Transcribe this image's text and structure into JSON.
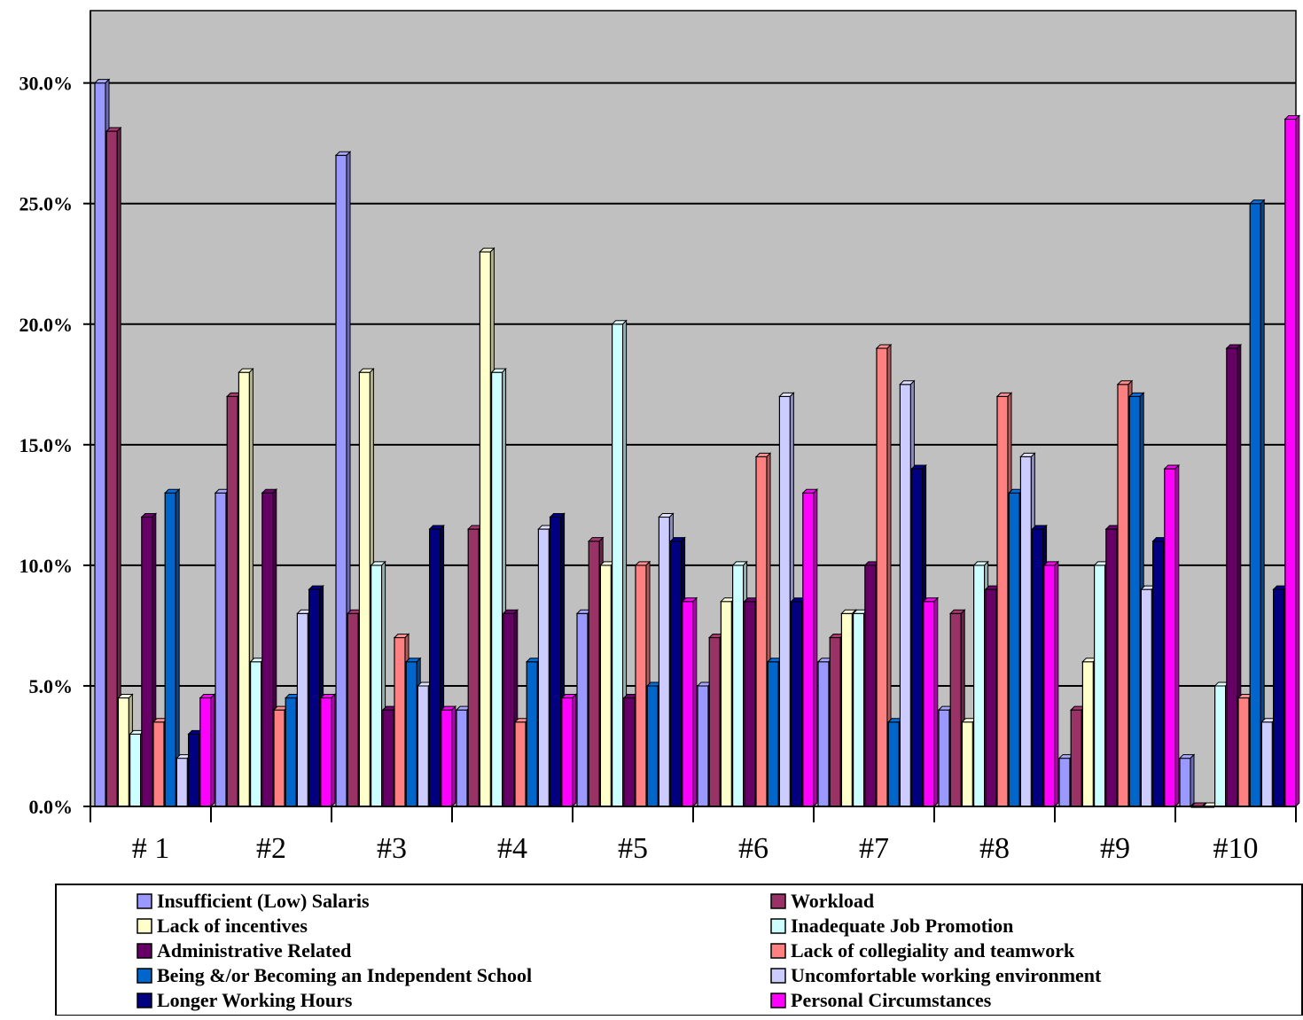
{
  "chart_data": {
    "type": "bar",
    "categories": [
      "# 1",
      "#2",
      "#3",
      "#4",
      "#5",
      "#6",
      "#7",
      "#8",
      "#9",
      "#10"
    ],
    "y_ticks": [
      "0.0%",
      "5.0%",
      "10.0%",
      "15.0%",
      "20.0%",
      "25.0%",
      "30.0%"
    ],
    "ylim": [
      0,
      0.33
    ],
    "grid": true,
    "legend_position": "bottom",
    "series": [
      {
        "name": "Insufficient (Low) Salaris",
        "color": "#9999ff",
        "values": [
          0.3,
          0.13,
          0.27,
          0.04,
          0.08,
          0.05,
          0.06,
          0.04,
          0.02,
          0.02
        ]
      },
      {
        "name": "Workload",
        "color": "#993366",
        "values": [
          0.28,
          0.17,
          0.08,
          0.115,
          0.11,
          0.07,
          0.07,
          0.08,
          0.04,
          0.0
        ]
      },
      {
        "name": "Lack of incentives",
        "color": "#ffffcc",
        "values": [
          0.045,
          0.18,
          0.18,
          0.23,
          0.1,
          0.085,
          0.08,
          0.035,
          0.06,
          0.0
        ]
      },
      {
        "name": "Inadequate Job Promotion",
        "color": "#ccffff",
        "values": [
          0.03,
          0.06,
          0.1,
          0.18,
          0.2,
          0.1,
          0.08,
          0.1,
          0.1,
          0.05
        ]
      },
      {
        "name": "Administrative Related",
        "color": "#660066",
        "values": [
          0.12,
          0.13,
          0.04,
          0.08,
          0.045,
          0.085,
          0.1,
          0.09,
          0.115,
          0.19
        ]
      },
      {
        "name": "Lack of collegiality and teamwork",
        "color": "#ff8080",
        "values": [
          0.035,
          0.04,
          0.07,
          0.035,
          0.1,
          0.145,
          0.19,
          0.17,
          0.175,
          0.045
        ]
      },
      {
        "name": "Being &/or Becoming an Independent School",
        "color": "#0066cc",
        "values": [
          0.13,
          0.045,
          0.06,
          0.06,
          0.05,
          0.06,
          0.035,
          0.13,
          0.17,
          0.25
        ]
      },
      {
        "name": "Uncomfortable working environment",
        "color": "#ccccff",
        "values": [
          0.02,
          0.08,
          0.05,
          0.115,
          0.12,
          0.17,
          0.175,
          0.145,
          0.09,
          0.035
        ]
      },
      {
        "name": "Longer Working Hours",
        "color": "#000080",
        "values": [
          0.03,
          0.09,
          0.115,
          0.12,
          0.11,
          0.085,
          0.14,
          0.115,
          0.11,
          0.09
        ]
      },
      {
        "name": "Personal Circumstances",
        "color": "#ff00ff",
        "values": [
          0.045,
          0.045,
          0.04,
          0.045,
          0.085,
          0.13,
          0.085,
          0.1,
          0.14,
          0.285
        ]
      }
    ]
  },
  "colors": {
    "plot_background": "#c0c0c0",
    "gridline": "#000000",
    "axis": "#000000"
  }
}
